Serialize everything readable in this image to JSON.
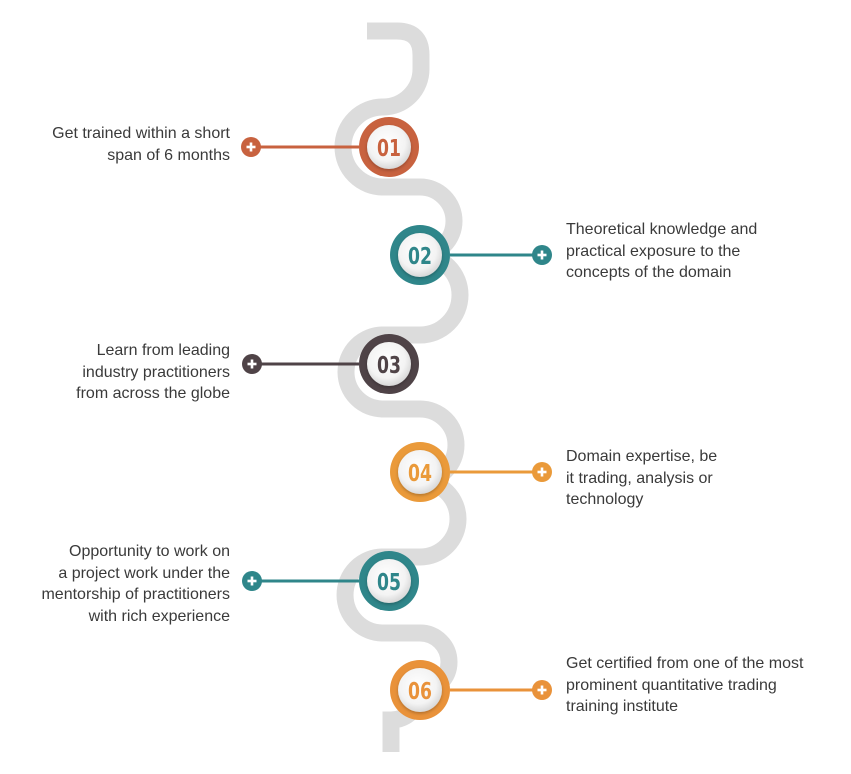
{
  "steps": [
    {
      "number": "01",
      "side": "left",
      "color": "#c8623f",
      "lines": [
        "Get trained within a short",
        "span of 6 months"
      ]
    },
    {
      "number": "02",
      "side": "right",
      "color": "#2f868a",
      "lines": [
        "Theoretical knowledge and",
        "practical exposure to the",
        "concepts of the domain"
      ]
    },
    {
      "number": "03",
      "side": "left",
      "color": "#4f4347",
      "lines": [
        "Learn from leading",
        "industry practitioners",
        "from across the globe"
      ]
    },
    {
      "number": "04",
      "side": "right",
      "color": "#ea9a3a",
      "lines": [
        "Domain expertise, be",
        "it trading, analysis or",
        "technology"
      ]
    },
    {
      "number": "05",
      "side": "left",
      "color": "#2f868a",
      "lines": [
        "Opportunity to work on",
        "a project work under the",
        "mentorship of practitioners",
        "with rich experience"
      ]
    },
    {
      "number": "06",
      "side": "right",
      "color": "#e9923a",
      "lines": [
        "Get certified from one of the most",
        "prominent quantitative trading",
        "training institute"
      ]
    }
  ],
  "icons": {
    "connector_end": "plus-icon"
  },
  "colors": {
    "track": "#dcdcdc",
    "text": "#3a3a3a"
  }
}
